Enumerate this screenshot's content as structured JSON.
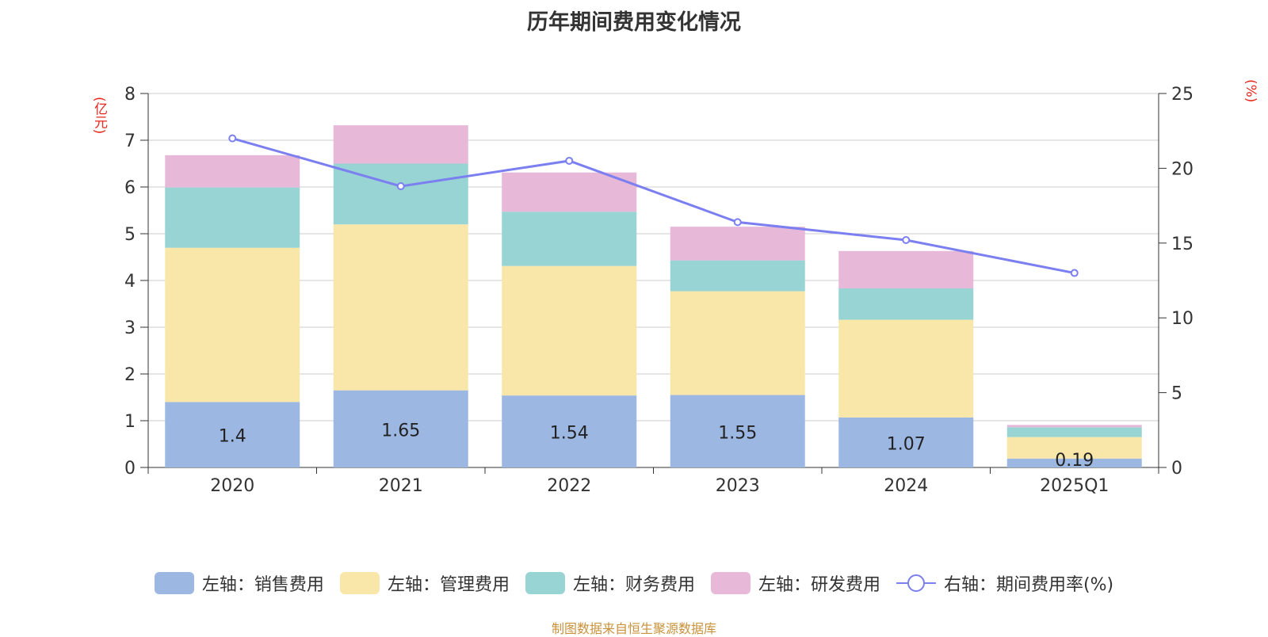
{
  "title": "历年期间费用变化情况",
  "source": "制图数据来自恒生聚源数据库",
  "left_unit": "(亿元)",
  "right_unit": "(%)",
  "colors": {
    "sales": "#9cb8e2",
    "admin": "#f8e7a8",
    "finance": "#98d4d4",
    "rd": "#e7b8d8",
    "rate": "#7b7ff0",
    "grid": "#cccccc",
    "axis": "#333333",
    "unit": "#e8271e"
  },
  "chart_data": {
    "type": "bar",
    "stacked": true,
    "categories": [
      "2020",
      "2021",
      "2022",
      "2023",
      "2024",
      "2025Q1"
    ],
    "series": [
      {
        "name": "左轴：销售费用",
        "key": "sales",
        "axis": "left",
        "values": [
          1.4,
          1.65,
          1.54,
          1.55,
          1.07,
          0.19
        ],
        "labels": [
          "1.4",
          "1.65",
          "1.54",
          "1.55",
          "1.07",
          "0.19"
        ]
      },
      {
        "name": "左轴：管理费用",
        "key": "admin",
        "axis": "left",
        "values": [
          3.3,
          3.55,
          2.77,
          2.22,
          2.09,
          0.46
        ]
      },
      {
        "name": "左轴：财务费用",
        "key": "finance",
        "axis": "left",
        "values": [
          1.29,
          1.3,
          1.16,
          0.66,
          0.67,
          0.21
        ]
      },
      {
        "name": "左轴：研发费用",
        "key": "rd",
        "axis": "left",
        "values": [
          0.69,
          0.82,
          0.84,
          0.72,
          0.8,
          0.05
        ]
      }
    ],
    "line_series": {
      "name": "右轴：期间费用率(%)",
      "key": "rate",
      "axis": "right",
      "values": [
        22.0,
        18.8,
        20.5,
        16.4,
        15.2,
        13.0
      ]
    },
    "left_axis": {
      "min": 0,
      "max": 8,
      "ticks": [
        0,
        1,
        2,
        3,
        4,
        5,
        6,
        7,
        8
      ]
    },
    "right_axis": {
      "min": 0,
      "max": 25,
      "ticks": [
        0,
        5,
        10,
        15,
        20,
        25
      ]
    },
    "legend_position": "bottom"
  }
}
